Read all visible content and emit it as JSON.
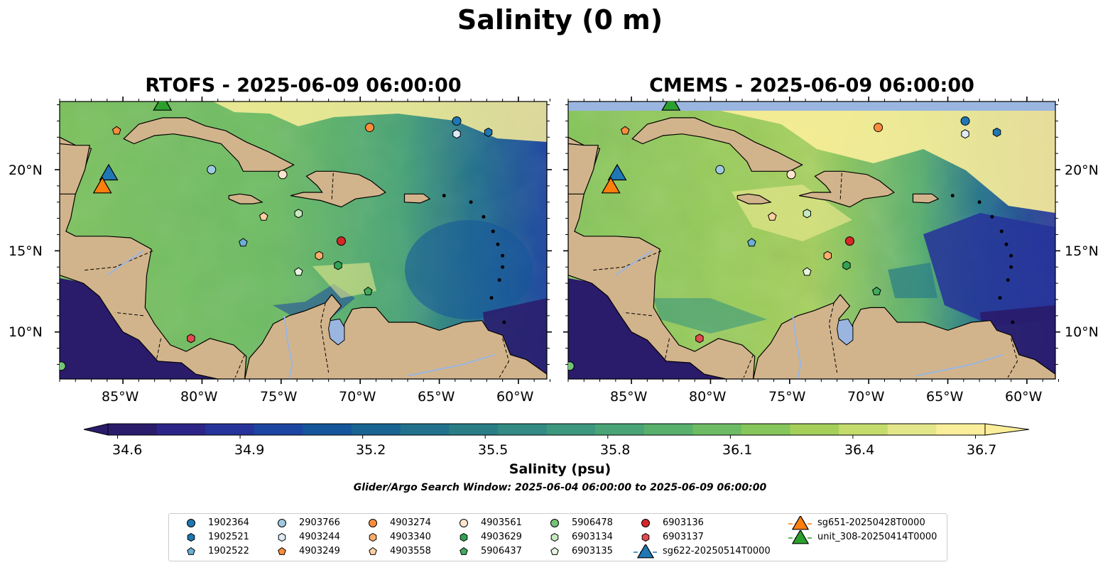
{
  "title": "Salinity (0 m)",
  "panels": [
    {
      "title": "RTOFS - 2025-06-09 06:00:00"
    },
    {
      "title": "CMEMS - 2025-06-09 06:00:00"
    }
  ],
  "lat_ticks": [
    "20°N",
    "15°N",
    "10°N"
  ],
  "lon_ticks": [
    "85°W",
    "80°W",
    "75°W",
    "70°W",
    "65°W",
    "60°W"
  ],
  "colorbar": {
    "label": "Salinity (psu)",
    "ticks": [
      "34.6",
      "34.9",
      "35.2",
      "35.5",
      "35.8",
      "36.1",
      "36.4",
      "36.7"
    ],
    "range": [
      34.6,
      36.7
    ],
    "colormap": "haline",
    "colors": [
      "#2a1b6b",
      "#2c2587",
      "#26339a",
      "#1b45a0",
      "#14569b",
      "#186493",
      "#21718c",
      "#297d87",
      "#318a83",
      "#3b977d",
      "#48a476",
      "#58b06d",
      "#6dbc64",
      "#86c65b",
      "#a4d05a",
      "#c4dc6c",
      "#e4e68a",
      "#fbee9a"
    ]
  },
  "search_window": "Glider/Argo Search Window: 2025-06-04 06:00:00 to 2025-06-09 06:00:00",
  "land_color": "#d2b48c",
  "legend": [
    {
      "label": "1902364",
      "marker": "circle",
      "color": "#1f77b4"
    },
    {
      "label": "1902521",
      "marker": "hexagon",
      "color": "#1f77b4"
    },
    {
      "label": "1902522",
      "marker": "pentagon",
      "color": "#6baed6"
    },
    {
      "label": "2903766",
      "marker": "circle",
      "color": "#9ecae1"
    },
    {
      "label": "4903244",
      "marker": "hexagon",
      "color": "#deebf7"
    },
    {
      "label": "4903249",
      "marker": "pentagon",
      "color": "#fd8d3c"
    },
    {
      "label": "4903274",
      "marker": "circle",
      "color": "#fd8d3c"
    },
    {
      "label": "4903340",
      "marker": "hexagon",
      "color": "#fdae6b"
    },
    {
      "label": "4903558",
      "marker": "pentagon",
      "color": "#fdd0a2"
    },
    {
      "label": "4903561",
      "marker": "circle",
      "color": "#fee6ce"
    },
    {
      "label": "4903629",
      "marker": "hexagon",
      "color": "#31a354"
    },
    {
      "label": "5906437",
      "marker": "pentagon",
      "color": "#41ab5d"
    },
    {
      "label": "5906478",
      "marker": "circle",
      "color": "#74c476"
    },
    {
      "label": "6903134",
      "marker": "hexagon",
      "color": "#c7e9c0"
    },
    {
      "label": "6903135",
      "marker": "pentagon",
      "color": "#e5f5e0"
    },
    {
      "label": "6903136",
      "marker": "circle",
      "color": "#d62728"
    },
    {
      "label": "6903137",
      "marker": "hexagon",
      "color": "#e34a4f"
    },
    {
      "label": "sg622-20250514T0000",
      "marker": "triangle",
      "color": "#1f77b4"
    },
    {
      "label": "sg651-20250428T0000",
      "marker": "triangle",
      "color": "#ff7f0e"
    },
    {
      "label": "unit_308-20250414T0000",
      "marker": "triangle",
      "color": "#2ca02c"
    }
  ],
  "observations": [
    {
      "id": "1902364",
      "lon": -63.9,
      "lat": 23.0
    },
    {
      "id": "1902521",
      "lon": -61.9,
      "lat": 22.3
    },
    {
      "id": "1902522",
      "lon": -77.4,
      "lat": 15.5
    },
    {
      "id": "2903766",
      "lon": -79.4,
      "lat": 20.0
    },
    {
      "id": "4903244",
      "lon": -63.9,
      "lat": 22.2
    },
    {
      "id": "4903249",
      "lon": -85.4,
      "lat": 22.4
    },
    {
      "id": "4903274",
      "lon": -69.4,
      "lat": 22.6
    },
    {
      "id": "4903340",
      "lon": -72.6,
      "lat": 14.7
    },
    {
      "id": "4903558",
      "lon": -76.1,
      "lat": 17.1
    },
    {
      "id": "4903561",
      "lon": -74.9,
      "lat": 19.7
    },
    {
      "id": "4903629",
      "lon": -71.4,
      "lat": 14.1
    },
    {
      "id": "5906437",
      "lon": -69.5,
      "lat": 12.5
    },
    {
      "id": "5906478",
      "lon": -88.9,
      "lat": 7.9
    },
    {
      "id": "6903134",
      "lon": -73.9,
      "lat": 17.3
    },
    {
      "id": "6903135",
      "lon": -73.9,
      "lat": 13.7
    },
    {
      "id": "6903136",
      "lon": -71.2,
      "lat": 15.6
    },
    {
      "id": "6903137",
      "lon": -80.7,
      "lat": 9.6
    },
    {
      "id": "sg622-20250514T0000",
      "lon": -85.9,
      "lat": 19.8
    },
    {
      "id": "sg651-20250428T0000",
      "lon": -86.3,
      "lat": 19.0
    },
    {
      "id": "unit_308-20250414T0000",
      "lon": -82.5,
      "lat": 24.1
    }
  ]
}
